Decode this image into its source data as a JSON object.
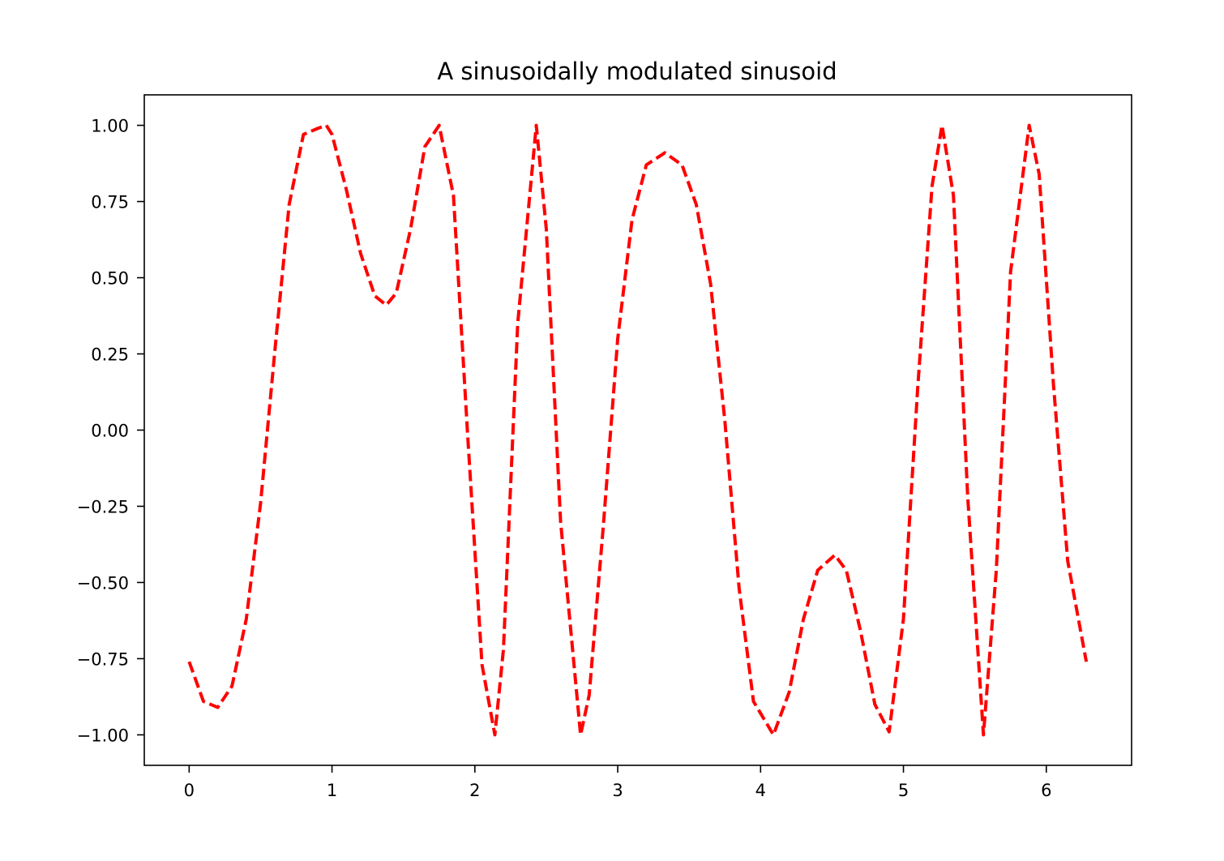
{
  "chart_data": {
    "type": "line",
    "title": "A sinusoidally modulated sinusoid",
    "xlabel": "",
    "ylabel": "",
    "xlim": [
      -0.314,
      6.597
    ],
    "ylim": [
      -1.1,
      1.1
    ],
    "x_ticks": [
      0,
      1,
      2,
      3,
      4,
      5,
      6
    ],
    "x_tick_labels": [
      "0",
      "1",
      "2",
      "3",
      "4",
      "5",
      "6"
    ],
    "y_ticks": [
      1.0,
      0.75,
      0.5,
      0.25,
      0.0,
      -0.25,
      -0.5,
      -0.75,
      -1.0
    ],
    "y_tick_labels": [
      "1.00",
      "0.75",
      "0.50",
      "0.25",
      "0.00",
      "−0.25",
      "−0.50",
      "−0.75",
      "−1.00"
    ],
    "grid": false,
    "series": [
      {
        "line_style": "dashed",
        "color": "#ff0000",
        "x": [
          0.0,
          0.1,
          0.2,
          0.3,
          0.4,
          0.5,
          0.6,
          0.7,
          0.8,
          0.9,
          0.96,
          1.0,
          1.1,
          1.2,
          1.3,
          1.38,
          1.45,
          1.55,
          1.65,
          1.75,
          1.85,
          1.95,
          2.05,
          2.14,
          2.2,
          2.3,
          2.43,
          2.5,
          2.6,
          2.74,
          2.8,
          2.9,
          3.0,
          3.1,
          3.2,
          3.33,
          3.45,
          3.55,
          3.65,
          3.75,
          3.85,
          3.95,
          4.09,
          4.2,
          4.3,
          4.4,
          4.52,
          4.6,
          4.7,
          4.8,
          4.9,
          5.0,
          5.1,
          5.2,
          5.27,
          5.35,
          5.45,
          5.56,
          5.65,
          5.75,
          5.88,
          5.95,
          6.05,
          6.15,
          6.28
        ],
        "y": [
          -0.76,
          -0.89,
          -0.91,
          -0.84,
          -0.62,
          -0.24,
          0.26,
          0.74,
          0.97,
          0.99,
          1.0,
          0.97,
          0.79,
          0.58,
          0.44,
          0.41,
          0.45,
          0.66,
          0.93,
          1.0,
          0.77,
          -0.02,
          -0.77,
          -1.0,
          -0.72,
          0.35,
          1.0,
          0.66,
          -0.3,
          -1.0,
          -0.87,
          -0.31,
          0.3,
          0.69,
          0.87,
          0.91,
          0.87,
          0.74,
          0.48,
          0.03,
          -0.52,
          -0.89,
          -1.0,
          -0.86,
          -0.62,
          -0.46,
          -0.41,
          -0.46,
          -0.66,
          -0.9,
          -0.99,
          -0.62,
          0.14,
          0.8,
          1.0,
          0.77,
          -0.22,
          -1.0,
          -0.46,
          0.52,
          1.0,
          0.84,
          0.15,
          -0.43,
          -0.76
        ]
      }
    ]
  }
}
